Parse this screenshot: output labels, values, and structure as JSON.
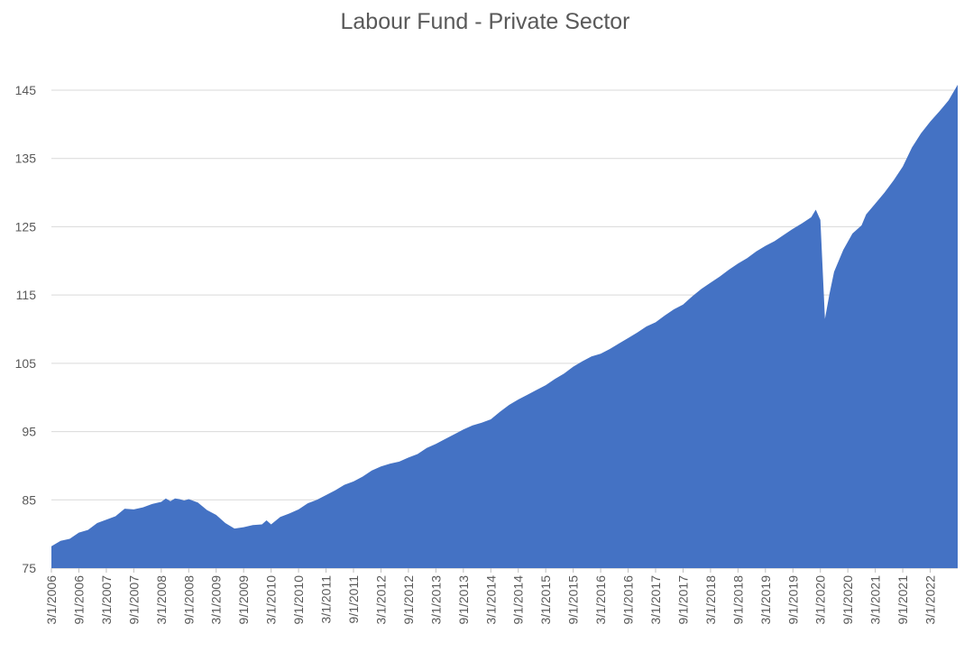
{
  "chart_data": {
    "type": "area",
    "title": "Labour Fund - Private Sector",
    "xlabel": "",
    "ylabel": "",
    "ylim": [
      75,
      145
    ],
    "yticks": [
      75,
      85,
      95,
      105,
      115,
      125,
      135,
      145
    ],
    "x_tick_labels": [
      "3/1/2006",
      "9/1/2006",
      "3/1/2007",
      "9/1/2007",
      "3/1/2008",
      "9/1/2008",
      "3/1/2009",
      "9/1/2009",
      "3/1/2010",
      "9/1/2010",
      "3/1/2011",
      "9/1/2011",
      "3/1/2012",
      "9/1/2012",
      "3/1/2013",
      "9/1/2013",
      "3/1/2014",
      "9/1/2014",
      "3/1/2015",
      "9/1/2015",
      "3/1/2016",
      "9/1/2016",
      "3/1/2017",
      "9/1/2017",
      "3/1/2018",
      "9/1/2018",
      "3/1/2019",
      "9/1/2019",
      "3/1/2020",
      "9/1/2020",
      "3/1/2021",
      "9/1/2021",
      "3/1/2022"
    ],
    "x_range": [
      "2006-03",
      "2022-09"
    ],
    "grid": true,
    "fill_color": "#4472C4",
    "series": [
      {
        "points": [
          [
            "2006-03",
            78.2
          ],
          [
            "2006-05",
            79.0
          ],
          [
            "2006-07",
            79.3
          ],
          [
            "2006-09",
            80.2
          ],
          [
            "2006-11",
            80.6
          ],
          [
            "2007-01",
            81.6
          ],
          [
            "2007-03",
            82.1
          ],
          [
            "2007-05",
            82.6
          ],
          [
            "2007-07",
            83.7
          ],
          [
            "2007-09",
            83.6
          ],
          [
            "2007-11",
            83.9
          ],
          [
            "2008-01",
            84.4
          ],
          [
            "2008-03",
            84.7
          ],
          [
            "2008-04",
            85.2
          ],
          [
            "2008-05",
            84.8
          ],
          [
            "2008-06",
            85.2
          ],
          [
            "2008-07",
            85.1
          ],
          [
            "2008-08",
            84.9
          ],
          [
            "2008-09",
            85.1
          ],
          [
            "2008-11",
            84.6
          ],
          [
            "2009-01",
            83.5
          ],
          [
            "2009-03",
            82.8
          ],
          [
            "2009-05",
            81.6
          ],
          [
            "2009-07",
            80.8
          ],
          [
            "2009-09",
            81.0
          ],
          [
            "2009-11",
            81.3
          ],
          [
            "2010-01",
            81.4
          ],
          [
            "2010-02",
            82.0
          ],
          [
            "2010-03",
            81.4
          ],
          [
            "2010-05",
            82.5
          ],
          [
            "2010-07",
            83.0
          ],
          [
            "2010-09",
            83.6
          ],
          [
            "2010-11",
            84.5
          ],
          [
            "2011-01",
            85.0
          ],
          [
            "2011-03",
            85.7
          ],
          [
            "2011-05",
            86.4
          ],
          [
            "2011-07",
            87.2
          ],
          [
            "2011-09",
            87.7
          ],
          [
            "2011-11",
            88.4
          ],
          [
            "2012-01",
            89.3
          ],
          [
            "2012-03",
            89.9
          ],
          [
            "2012-05",
            90.3
          ],
          [
            "2012-07",
            90.6
          ],
          [
            "2012-09",
            91.2
          ],
          [
            "2012-11",
            91.7
          ],
          [
            "2013-01",
            92.6
          ],
          [
            "2013-03",
            93.2
          ],
          [
            "2013-05",
            93.9
          ],
          [
            "2013-07",
            94.6
          ],
          [
            "2013-09",
            95.3
          ],
          [
            "2013-11",
            95.9
          ],
          [
            "2014-01",
            96.3
          ],
          [
            "2014-03",
            96.8
          ],
          [
            "2014-05",
            97.9
          ],
          [
            "2014-07",
            98.9
          ],
          [
            "2014-09",
            99.7
          ],
          [
            "2014-11",
            100.4
          ],
          [
            "2015-01",
            101.1
          ],
          [
            "2015-03",
            101.8
          ],
          [
            "2015-05",
            102.7
          ],
          [
            "2015-07",
            103.5
          ],
          [
            "2015-09",
            104.5
          ],
          [
            "2015-11",
            105.3
          ],
          [
            "2016-01",
            106.0
          ],
          [
            "2016-03",
            106.4
          ],
          [
            "2016-05",
            107.1
          ],
          [
            "2016-07",
            107.9
          ],
          [
            "2016-09",
            108.7
          ],
          [
            "2016-11",
            109.5
          ],
          [
            "2017-01",
            110.4
          ],
          [
            "2017-03",
            111.0
          ],
          [
            "2017-05",
            112.0
          ],
          [
            "2017-07",
            112.9
          ],
          [
            "2017-09",
            113.6
          ],
          [
            "2017-11",
            114.8
          ],
          [
            "2018-01",
            115.9
          ],
          [
            "2018-03",
            116.8
          ],
          [
            "2018-05",
            117.7
          ],
          [
            "2018-07",
            118.7
          ],
          [
            "2018-09",
            119.6
          ],
          [
            "2018-11",
            120.4
          ],
          [
            "2019-01",
            121.4
          ],
          [
            "2019-03",
            122.2
          ],
          [
            "2019-05",
            122.9
          ],
          [
            "2019-07",
            123.8
          ],
          [
            "2019-09",
            124.7
          ],
          [
            "2019-11",
            125.5
          ],
          [
            "2020-01",
            126.4
          ],
          [
            "2020-02",
            127.5
          ],
          [
            "2020-03",
            126.0
          ],
          [
            "2020-04",
            111.5
          ],
          [
            "2020-05",
            115.2
          ],
          [
            "2020-06",
            118.4
          ],
          [
            "2020-08",
            121.6
          ],
          [
            "2020-10",
            124.0
          ],
          [
            "2020-12",
            125.2
          ],
          [
            "2021-01",
            126.8
          ],
          [
            "2021-03",
            128.4
          ],
          [
            "2021-05",
            130.0
          ],
          [
            "2021-07",
            131.8
          ],
          [
            "2021-09",
            133.8
          ],
          [
            "2021-11",
            136.6
          ],
          [
            "2022-01",
            138.7
          ],
          [
            "2022-03",
            140.4
          ],
          [
            "2022-05",
            141.9
          ],
          [
            "2022-07",
            143.5
          ],
          [
            "2022-09",
            145.8
          ]
        ]
      }
    ]
  }
}
